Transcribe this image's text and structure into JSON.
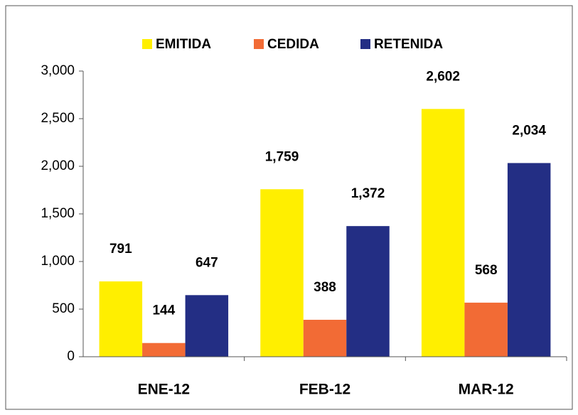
{
  "chart_data": {
    "type": "bar",
    "categories": [
      "ENE-12",
      "FEB-12",
      "MAR-12"
    ],
    "series": [
      {
        "name": "EMITIDA",
        "color": "#FFEF00",
        "values": [
          791,
          1759,
          2602
        ],
        "value_labels": [
          "791",
          "1,759",
          "2,602"
        ]
      },
      {
        "name": "CEDIDA",
        "color": "#F26B35",
        "values": [
          144,
          388,
          568
        ],
        "value_labels": [
          "144",
          "388",
          "568"
        ]
      },
      {
        "name": "RETENIDA",
        "color": "#232E84",
        "values": [
          647,
          1372,
          2034
        ],
        "value_labels": [
          "647",
          "1,372",
          "2,034"
        ]
      }
    ],
    "ylim": [
      0,
      3000
    ],
    "yticks": [
      0,
      500,
      {
        "value": 1000,
        "label": "1,000"
      },
      {
        "value": 1500,
        "label": "1,500"
      },
      {
        "value": 2000,
        "label": "2,000"
      },
      {
        "value": 2500,
        "label": "2,500"
      },
      {
        "value": 3000,
        "label": "3,000"
      }
    ],
    "legend": "top"
  }
}
